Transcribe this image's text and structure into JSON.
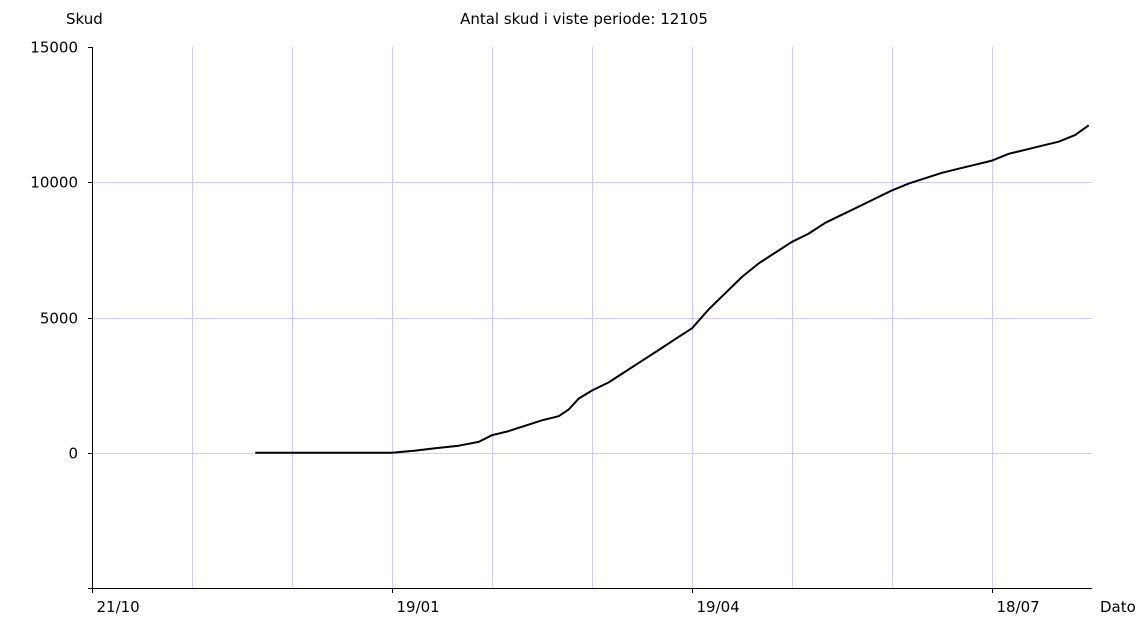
{
  "chart_data": {
    "type": "line",
    "title": "Antal skud i viste periode: 12105",
    "ylabel": "Skud",
    "xlabel": "Dato",
    "ylim": [
      -5000,
      15000
    ],
    "xlim": [
      0,
      300
    ],
    "y_ticks": [
      {
        "value": 15000,
        "label": "15000"
      },
      {
        "value": 10000,
        "label": "10000"
      },
      {
        "value": 5000,
        "label": "5000"
      },
      {
        "value": 0,
        "label": "0"
      }
    ],
    "x_ticks": [
      {
        "value": 0,
        "label": "21/10"
      },
      {
        "value": 90,
        "label": "19/01"
      },
      {
        "value": 180,
        "label": "19/04"
      },
      {
        "value": 270,
        "label": "18/07"
      }
    ],
    "grid": true,
    "colors": {
      "grid": "#ccccff",
      "axis": "#000000",
      "line": "#000000"
    },
    "series": [
      {
        "points": [
          [
            49,
            0
          ],
          [
            60,
            0
          ],
          [
            75,
            0
          ],
          [
            90,
            0
          ],
          [
            97,
            80
          ],
          [
            103,
            170
          ],
          [
            110,
            260
          ],
          [
            116,
            400
          ],
          [
            120,
            650
          ],
          [
            125,
            800
          ],
          [
            130,
            1000
          ],
          [
            135,
            1200
          ],
          [
            140,
            1350
          ],
          [
            143,
            1600
          ],
          [
            146,
            2000
          ],
          [
            150,
            2300
          ],
          [
            155,
            2600
          ],
          [
            160,
            3000
          ],
          [
            165,
            3400
          ],
          [
            170,
            3800
          ],
          [
            175,
            4200
          ],
          [
            180,
            4600
          ],
          [
            185,
            5300
          ],
          [
            190,
            5900
          ],
          [
            195,
            6500
          ],
          [
            200,
            7000
          ],
          [
            205,
            7400
          ],
          [
            210,
            7800
          ],
          [
            215,
            8100
          ],
          [
            220,
            8500
          ],
          [
            225,
            8800
          ],
          [
            230,
            9100
          ],
          [
            235,
            9400
          ],
          [
            240,
            9700
          ],
          [
            245,
            9950
          ],
          [
            250,
            10150
          ],
          [
            255,
            10350
          ],
          [
            260,
            10500
          ],
          [
            265,
            10650
          ],
          [
            270,
            10800
          ],
          [
            275,
            11050
          ],
          [
            280,
            11200
          ],
          [
            285,
            11350
          ],
          [
            290,
            11500
          ],
          [
            295,
            11750
          ],
          [
            299,
            12105
          ]
        ]
      }
    ]
  }
}
